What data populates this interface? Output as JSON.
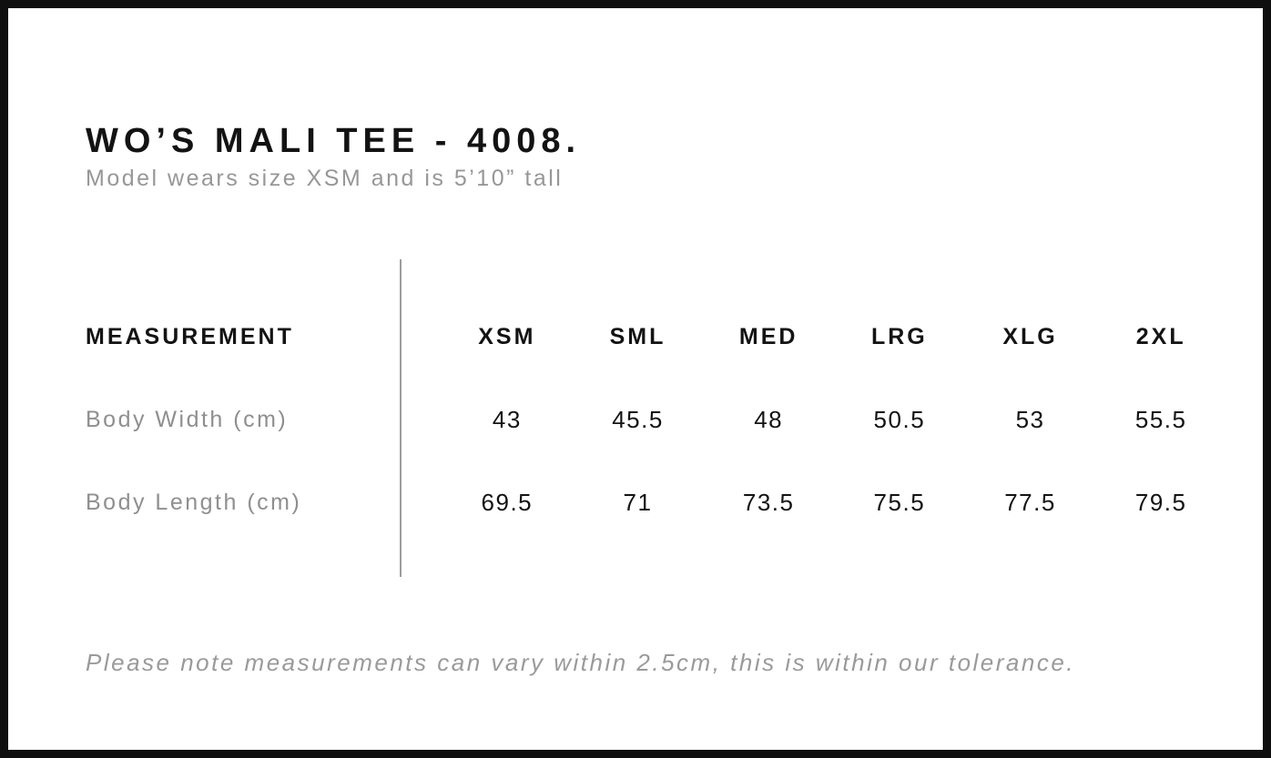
{
  "page": {
    "title": "WO’S MALI TEE - 4008.",
    "subtitle": "Model wears size XSM and is 5’10” tall",
    "tolerance_note": "Please note measurements can vary within 2.5cm, this is within our tolerance."
  },
  "size_chart": {
    "measurement_header": "MEASUREMENT",
    "sizes": [
      "XSM",
      "SML",
      "MED",
      "LRG",
      "XLG",
      "2XL"
    ],
    "rows": [
      {
        "label": "Body Width (cm)",
        "values": [
          "43",
          "45.5",
          "48",
          "50.5",
          "53",
          "55.5"
        ]
      },
      {
        "label": "Body Length (cm)",
        "values": [
          "69.5",
          "71",
          "73.5",
          "75.5",
          "77.5",
          "79.5"
        ]
      }
    ]
  },
  "colors": {
    "border": "#0f0f0f",
    "text_primary": "#131313",
    "text_secondary": "#8f8f8f",
    "divider": "#9d9d9d",
    "background": "#ffffff"
  }
}
